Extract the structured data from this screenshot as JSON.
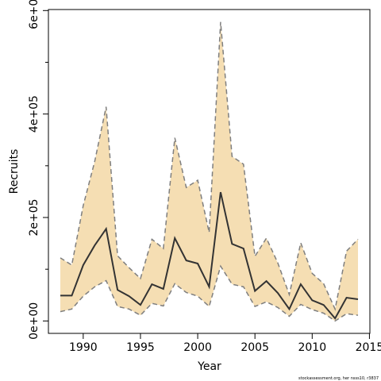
{
  "chart_data": {
    "type": "band-line",
    "xlabel": "Year",
    "ylabel": "Recruits",
    "footnote": "stockassessment.org, her nsss10, r3837",
    "x": [
      1988,
      1989,
      1990,
      1991,
      1992,
      1993,
      1994,
      1995,
      1996,
      1997,
      1998,
      1999,
      2000,
      2001,
      2002,
      2003,
      2004,
      2005,
      2006,
      2007,
      2008,
      2009,
      2010,
      2011,
      2012,
      2013,
      2014
    ],
    "values": [
      49000,
      49000,
      108000,
      146000,
      178000,
      60000,
      48000,
      31000,
      71000,
      62000,
      160000,
      117000,
      111000,
      66000,
      249000,
      149000,
      140000,
      58000,
      77000,
      54000,
      23000,
      71000,
      40000,
      31000,
      5000,
      45000,
      42000
    ],
    "upper": [
      122000,
      108000,
      223000,
      308000,
      414000,
      126000,
      103000,
      82000,
      158000,
      140000,
      354000,
      258000,
      272000,
      171000,
      578000,
      318000,
      303000,
      125000,
      160000,
      112000,
      51000,
      151000,
      92000,
      72000,
      23000,
      135000,
      158000
    ],
    "lower": [
      18000,
      23000,
      48000,
      66000,
      78000,
      28000,
      23000,
      11000,
      34000,
      29000,
      72000,
      55000,
      48000,
      28000,
      106000,
      71000,
      66000,
      28000,
      37000,
      26000,
      9000,
      32000,
      22000,
      15000,
      0,
      14000,
      11000
    ],
    "color": "#333333",
    "band_color": "#f5deb3",
    "band_edge_color": "#7f7f7f",
    "xlim": [
      1986.96,
      2015.04
    ],
    "ylim": [
      -24000,
      602000
    ],
    "xticks": [
      1990,
      1995,
      2000,
      2005,
      2010,
      2015
    ],
    "yticks": [
      {
        "value": 0,
        "label": "0e+00"
      },
      {
        "value": 200000,
        "label": "2e+05"
      },
      {
        "value": 400000,
        "label": "4e+05"
      },
      {
        "value": 600000,
        "label": "6e+05"
      }
    ],
    "yminorticks": [
      100000,
      300000,
      500000
    ]
  }
}
